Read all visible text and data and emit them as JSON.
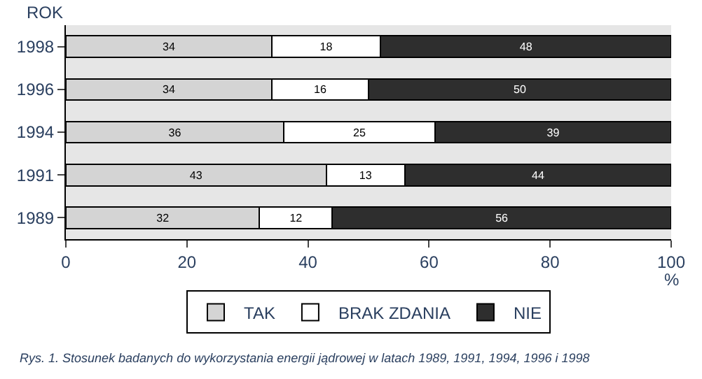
{
  "chart_data": {
    "type": "bar",
    "orientation": "horizontal",
    "stacked": true,
    "data_labels": true,
    "ylabel": "ROK",
    "xlabel": "%",
    "categories": [
      "1998",
      "1996",
      "1994",
      "1991",
      "1989"
    ],
    "series": [
      {
        "name": "TAK",
        "color": "#d4d4d4",
        "values": [
          34,
          34,
          36,
          43,
          32
        ]
      },
      {
        "name": "BRAK ZDANIA",
        "color": "#ffffff",
        "values": [
          18,
          16,
          25,
          13,
          12
        ]
      },
      {
        "name": "NIE",
        "color": "#2e2e2e",
        "values": [
          48,
          50,
          39,
          44,
          56
        ]
      }
    ],
    "xlim": [
      0,
      100
    ],
    "xticks": [
      0,
      20,
      40,
      60,
      80,
      100
    ],
    "grid": false,
    "legend": "bottom",
    "annotations": [
      "Rys. 1. Stosunek badanych do wykorzystania energii jądrowej w latach 1989, 1991, 1994, 1996 i 1998"
    ]
  }
}
